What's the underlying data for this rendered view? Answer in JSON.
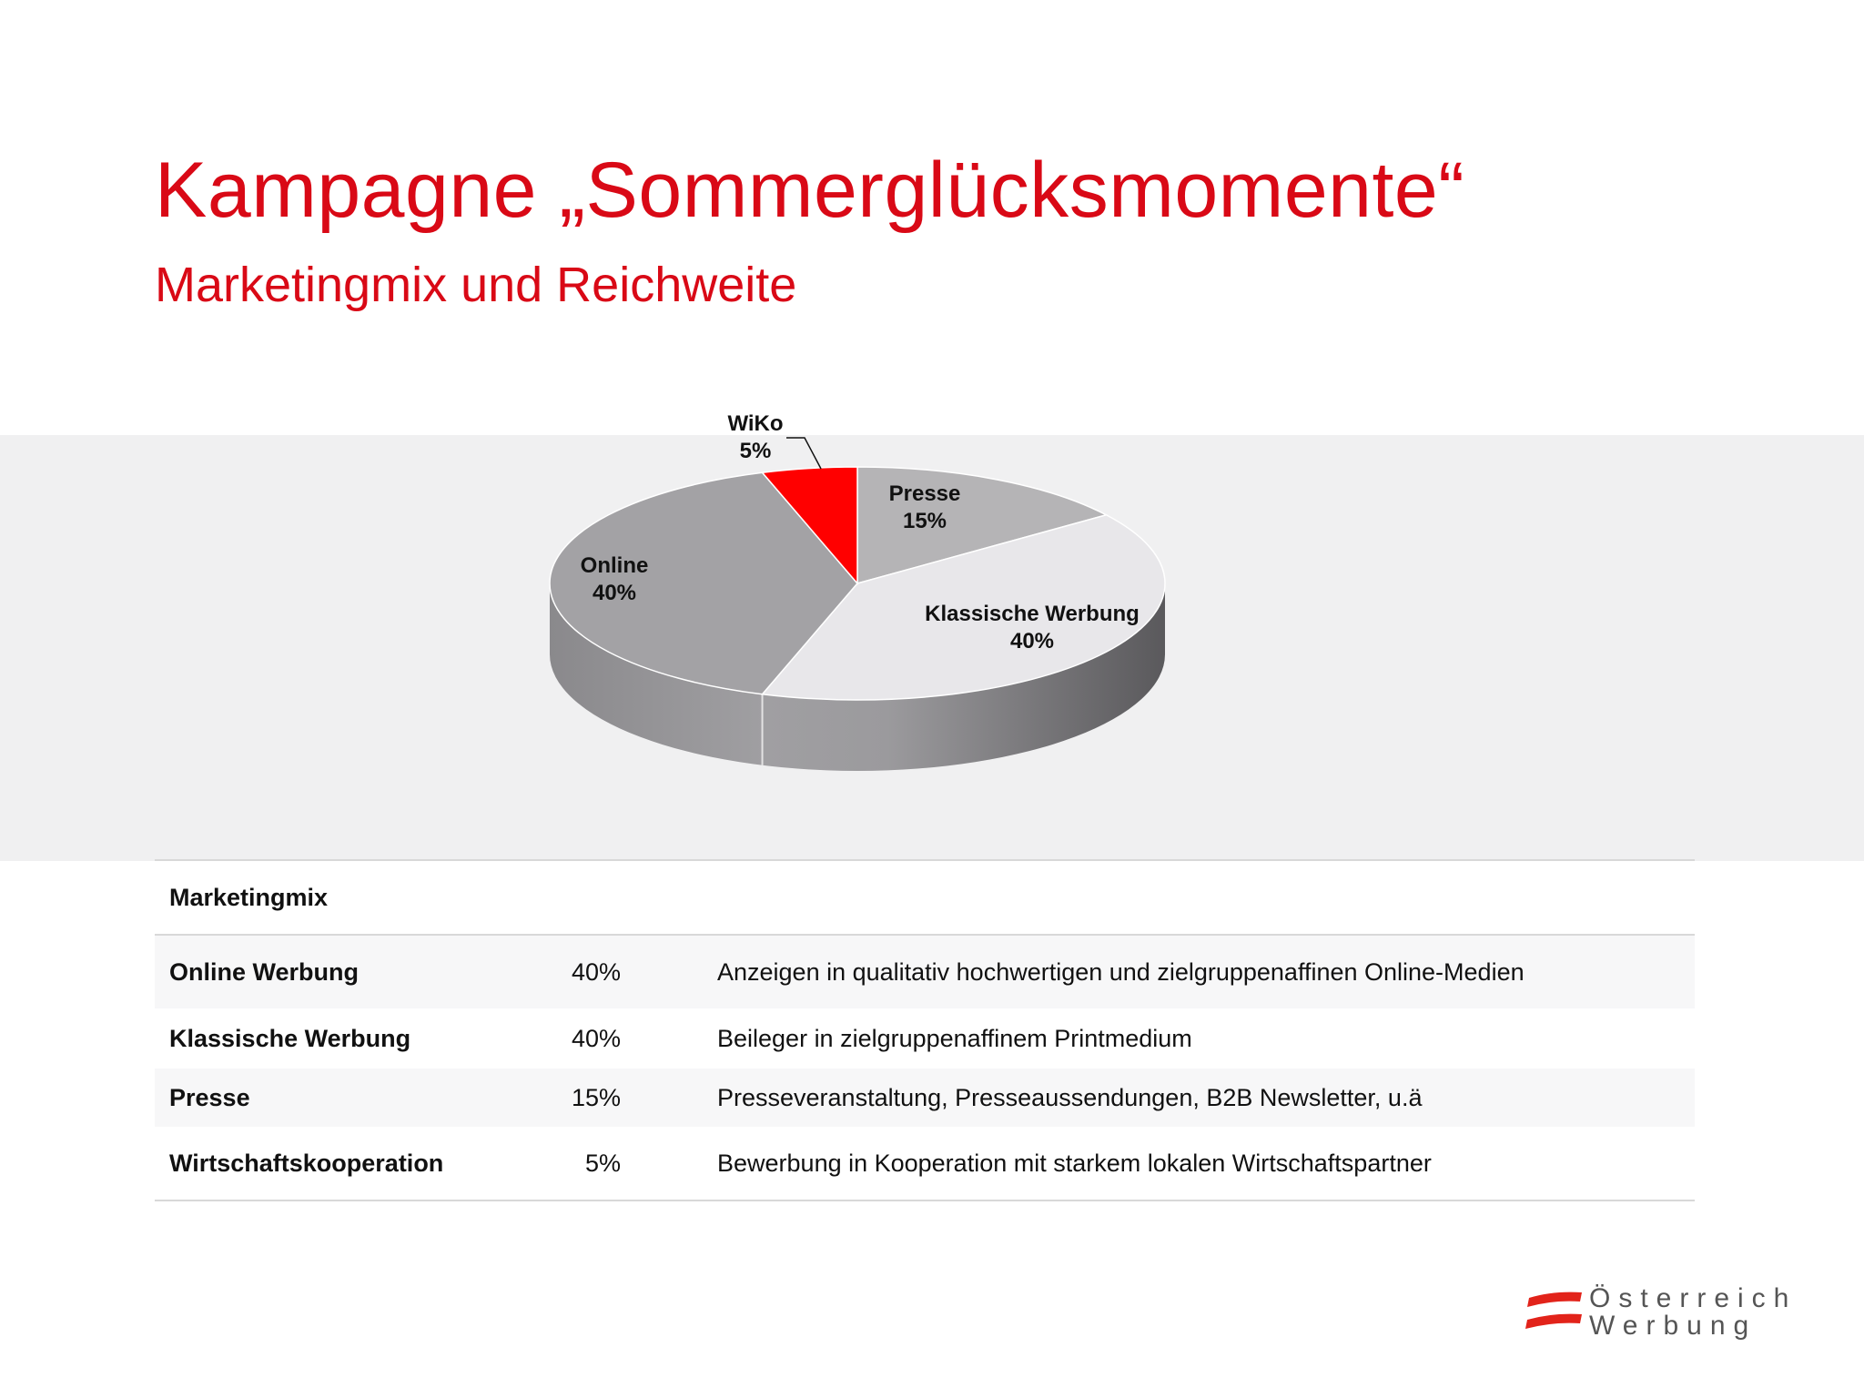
{
  "header": {
    "title": "Kampagne „Sommerglücksmomente“",
    "subtitle": "Marketingmix und Reichweite"
  },
  "chart_data": {
    "type": "pie",
    "title": "",
    "slices": [
      {
        "label": "Presse",
        "value": 15,
        "value_label": "15%",
        "color": "#b5b4b6"
      },
      {
        "label": "Klassische Werbung",
        "value": 40,
        "value_label": "40%",
        "color": "#e8e7ea"
      },
      {
        "label": "Online",
        "value": 40,
        "value_label": "40%",
        "color": "#a3a2a5"
      },
      {
        "label": "WiKo",
        "value": 5,
        "value_label": "5%",
        "color": "#ff0000"
      }
    ],
    "style": "3d",
    "start": "12 o'clock",
    "direction": "clockwise"
  },
  "table": {
    "heading": "Marketingmix",
    "rows": [
      {
        "name": "Online Werbung",
        "share": "40%",
        "description": "Anzeigen in qualitativ hochwertigen und zielgruppenaffinen Online-Medien"
      },
      {
        "name": "Klassische Werbung",
        "share": "40%",
        "description": "Beileger in zielgruppenaffinem Printmedium"
      },
      {
        "name": "Presse",
        "share": "15%",
        "description": "Presseveranstaltung, Presseaussendungen, B2B Newsletter, u.ä"
      },
      {
        "name": "Wirtschaftskooperation",
        "share": "5%",
        "description": "Bewerbung in Kooperation mit starkem lokalen Wirtschaftspartner"
      }
    ]
  },
  "logo": {
    "line1": "Österreich",
    "line2": "Werbung",
    "icon": "austria-flag-stripes-icon",
    "color": "#e2231a"
  },
  "colors": {
    "accent": "#d90916",
    "band": "#f0f0f1"
  }
}
